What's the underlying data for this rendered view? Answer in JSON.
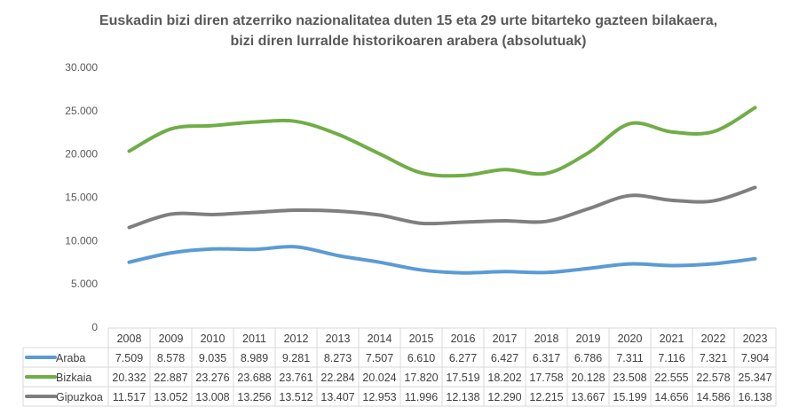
{
  "chart_data": {
    "type": "line",
    "title": "Euskadin bizi diren atzerriko nazionalitatea duten 15 eta 29 urte bitarteko gazteen bilakaera, bizi diren lurralde historikoaren arabera (absolutuak)",
    "xlabel": "",
    "ylabel": "",
    "ylim": [
      0,
      30000
    ],
    "yticks": [
      0,
      5000,
      10000,
      15000,
      20000,
      25000,
      30000
    ],
    "ytick_labels": [
      "0",
      "5.000",
      "10.000",
      "15.000",
      "20.000",
      "25.000",
      "30.000"
    ],
    "grid": false,
    "legend": "data-table",
    "categories": [
      "2008",
      "2009",
      "2010",
      "2011",
      "2012",
      "2013",
      "2014",
      "2015",
      "2016",
      "2017",
      "2018",
      "2019",
      "2020",
      "2021",
      "2022",
      "2023"
    ],
    "series": [
      {
        "name": "Araba",
        "color": "#5B9BD5",
        "values": [
          7509,
          8578,
          9035,
          8989,
          9281,
          8273,
          7507,
          6610,
          6277,
          6427,
          6317,
          6786,
          7311,
          7116,
          7321,
          7904
        ],
        "labels": [
          "7.509",
          "8.578",
          "9.035",
          "8.989",
          "9.281",
          "8.273",
          "7.507",
          "6.610",
          "6.277",
          "6.427",
          "6.317",
          "6.786",
          "7.311",
          "7.116",
          "7.321",
          "7.904"
        ]
      },
      {
        "name": "Bizkaia",
        "color": "#70AD47",
        "values": [
          20332,
          22887,
          23276,
          23688,
          23761,
          22284,
          20024,
          17820,
          17519,
          18202,
          17758,
          20128,
          23508,
          22555,
          22578,
          25347
        ],
        "labels": [
          "20.332",
          "22.887",
          "23.276",
          "23.688",
          "23.761",
          "22.284",
          "20.024",
          "17.820",
          "17.519",
          "18.202",
          "17.758",
          "20.128",
          "23.508",
          "22.555",
          "22.578",
          "25.347"
        ]
      },
      {
        "name": "Gipuzkoa",
        "color": "#7F7F7F",
        "values": [
          11517,
          13052,
          13008,
          13256,
          13512,
          13407,
          12953,
          11996,
          12138,
          12290,
          12215,
          13667,
          15199,
          14656,
          14586,
          16138
        ],
        "labels": [
          "11.517",
          "13.052",
          "13.008",
          "13.256",
          "13.512",
          "13.407",
          "12.953",
          "11.996",
          "12.138",
          "12.290",
          "12.215",
          "13.667",
          "15.199",
          "14.656",
          "14.586",
          "16.138"
        ]
      }
    ]
  }
}
